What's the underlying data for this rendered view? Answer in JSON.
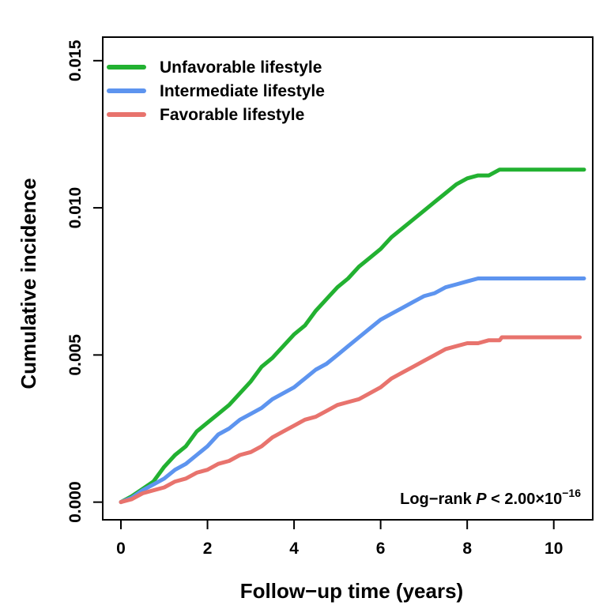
{
  "chart_data": {
    "type": "line",
    "title": "",
    "xlabel": "Follow−up time (years)",
    "ylabel": "Cumulative incidence",
    "xlim": [
      -0.42,
      10.9
    ],
    "ylim": [
      -0.0006,
      0.0158
    ],
    "x_ticks": [
      0,
      2,
      4,
      6,
      8,
      10
    ],
    "x_tick_labels": [
      "0",
      "2",
      "4",
      "6",
      "8",
      "10"
    ],
    "y_ticks": [
      0.0,
      0.005,
      0.01,
      0.015
    ],
    "y_tick_labels": [
      "0.000",
      "0.005",
      "0.010",
      "0.015"
    ],
    "grid": false,
    "legend_position": "top-left",
    "annotation": {
      "prefix": "Log−rank ",
      "p": "P",
      "relation": " < 2.00×10",
      "exponent": "−16"
    },
    "series": [
      {
        "name": "Unfavorable lifestyle",
        "color": "#22b131",
        "points": [
          [
            0,
            0
          ],
          [
            0.25,
            0.0002
          ],
          [
            0.5,
            0.00045
          ],
          [
            0.75,
            0.0007
          ],
          [
            1.0,
            0.0012
          ],
          [
            1.25,
            0.0016
          ],
          [
            1.5,
            0.0019
          ],
          [
            1.75,
            0.0024
          ],
          [
            2.0,
            0.0027
          ],
          [
            2.25,
            0.003
          ],
          [
            2.5,
            0.0033
          ],
          [
            2.75,
            0.0037
          ],
          [
            3.0,
            0.0041
          ],
          [
            3.25,
            0.0046
          ],
          [
            3.5,
            0.0049
          ],
          [
            3.75,
            0.0053
          ],
          [
            4.0,
            0.0057
          ],
          [
            4.25,
            0.006
          ],
          [
            4.5,
            0.0065
          ],
          [
            4.75,
            0.0069
          ],
          [
            5.0,
            0.0073
          ],
          [
            5.25,
            0.0076
          ],
          [
            5.5,
            0.008
          ],
          [
            5.75,
            0.0083
          ],
          [
            6.0,
            0.0086
          ],
          [
            6.25,
            0.009
          ],
          [
            6.5,
            0.0093
          ],
          [
            6.75,
            0.0096
          ],
          [
            7.0,
            0.0099
          ],
          [
            7.25,
            0.0102
          ],
          [
            7.5,
            0.0105
          ],
          [
            7.75,
            0.0108
          ],
          [
            8.0,
            0.011
          ],
          [
            8.25,
            0.0111
          ],
          [
            8.5,
            0.0111
          ],
          [
            8.75,
            0.0113
          ],
          [
            9.0,
            0.0113
          ],
          [
            9.5,
            0.0113
          ],
          [
            10.0,
            0.0113
          ],
          [
            10.7,
            0.0113
          ]
        ]
      },
      {
        "name": "Intermediate lifestyle",
        "color": "#5d94ef",
        "points": [
          [
            0,
            0
          ],
          [
            0.25,
            0.00015
          ],
          [
            0.5,
            0.0004
          ],
          [
            0.75,
            0.0006
          ],
          [
            1.0,
            0.0008
          ],
          [
            1.25,
            0.0011
          ],
          [
            1.5,
            0.0013
          ],
          [
            1.75,
            0.0016
          ],
          [
            2.0,
            0.0019
          ],
          [
            2.25,
            0.0023
          ],
          [
            2.5,
            0.0025
          ],
          [
            2.75,
            0.0028
          ],
          [
            3.0,
            0.003
          ],
          [
            3.25,
            0.0032
          ],
          [
            3.5,
            0.0035
          ],
          [
            3.75,
            0.0037
          ],
          [
            4.0,
            0.0039
          ],
          [
            4.25,
            0.0042
          ],
          [
            4.5,
            0.0045
          ],
          [
            4.75,
            0.0047
          ],
          [
            5.0,
            0.005
          ],
          [
            5.25,
            0.0053
          ],
          [
            5.5,
            0.0056
          ],
          [
            5.75,
            0.0059
          ],
          [
            6.0,
            0.0062
          ],
          [
            6.25,
            0.0064
          ],
          [
            6.5,
            0.0066
          ],
          [
            6.75,
            0.0068
          ],
          [
            7.0,
            0.007
          ],
          [
            7.25,
            0.0071
          ],
          [
            7.5,
            0.0073
          ],
          [
            7.75,
            0.0074
          ],
          [
            8.0,
            0.0075
          ],
          [
            8.25,
            0.0076
          ],
          [
            8.5,
            0.0076
          ],
          [
            8.75,
            0.0076
          ],
          [
            9.0,
            0.0076
          ],
          [
            9.5,
            0.0076
          ],
          [
            10.0,
            0.0076
          ],
          [
            10.7,
            0.0076
          ]
        ]
      },
      {
        "name": "Favorable lifestyle",
        "color": "#e8736d",
        "points": [
          [
            0,
            0
          ],
          [
            0.25,
            0.0001
          ],
          [
            0.5,
            0.0003
          ],
          [
            0.75,
            0.0004
          ],
          [
            1.0,
            0.0005
          ],
          [
            1.25,
            0.0007
          ],
          [
            1.5,
            0.0008
          ],
          [
            1.75,
            0.001
          ],
          [
            2.0,
            0.0011
          ],
          [
            2.25,
            0.0013
          ],
          [
            2.5,
            0.0014
          ],
          [
            2.75,
            0.0016
          ],
          [
            3.0,
            0.0017
          ],
          [
            3.25,
            0.0019
          ],
          [
            3.5,
            0.0022
          ],
          [
            3.75,
            0.0024
          ],
          [
            4.0,
            0.0026
          ],
          [
            4.25,
            0.0028
          ],
          [
            4.5,
            0.0029
          ],
          [
            4.75,
            0.0031
          ],
          [
            5.0,
            0.0033
          ],
          [
            5.25,
            0.0034
          ],
          [
            5.5,
            0.0035
          ],
          [
            5.75,
            0.0037
          ],
          [
            6.0,
            0.0039
          ],
          [
            6.25,
            0.0042
          ],
          [
            6.5,
            0.0044
          ],
          [
            6.75,
            0.0046
          ],
          [
            7.0,
            0.0048
          ],
          [
            7.25,
            0.005
          ],
          [
            7.5,
            0.0052
          ],
          [
            7.75,
            0.0053
          ],
          [
            8.0,
            0.0054
          ],
          [
            8.25,
            0.0054
          ],
          [
            8.5,
            0.0055
          ],
          [
            8.75,
            0.0055
          ],
          [
            8.8,
            0.0056
          ],
          [
            9.0,
            0.0056
          ],
          [
            9.5,
            0.0056
          ],
          [
            10.0,
            0.0056
          ],
          [
            10.6,
            0.0056
          ]
        ]
      }
    ]
  }
}
